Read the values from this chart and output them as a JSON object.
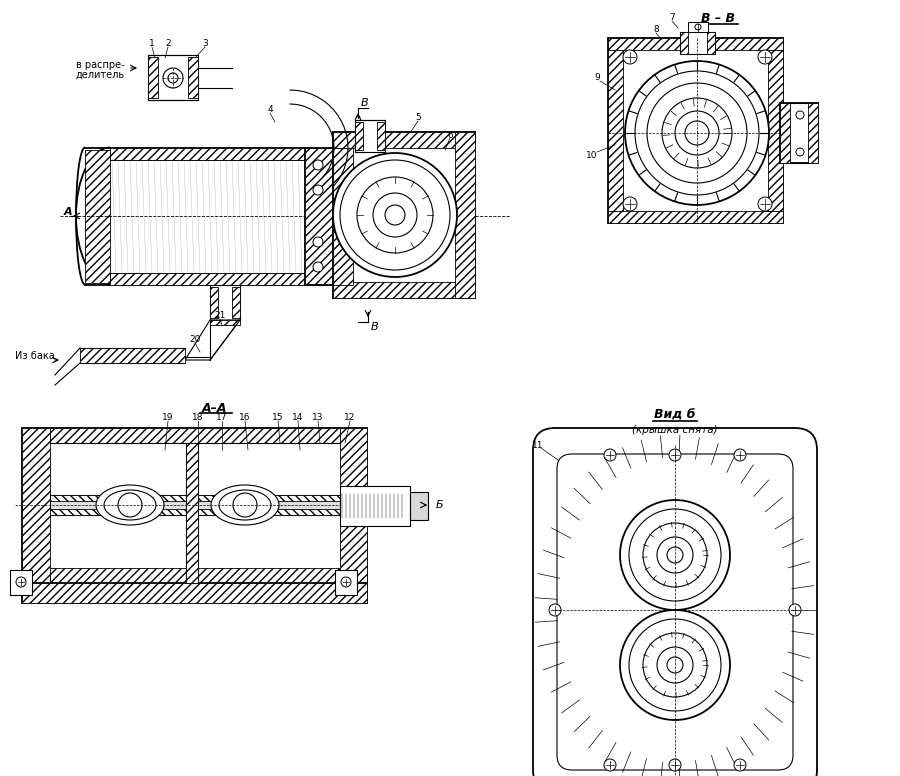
{
  "bg_color": "#ffffff",
  "line_color": "#000000",
  "fig_width": 9.0,
  "fig_height": 7.76,
  "labels": {
    "view_bb": "B – B",
    "view_aa": "A–A",
    "view_b_title": "Вид б",
    "view_b_sub": "(крышка снята)",
    "in_distr_1": "в распре-",
    "in_distr_2": "делитель",
    "from_tank": "Из бака",
    "letter_a": "A",
    "letter_b_italic": "B",
    "letter_bb": "Б"
  }
}
